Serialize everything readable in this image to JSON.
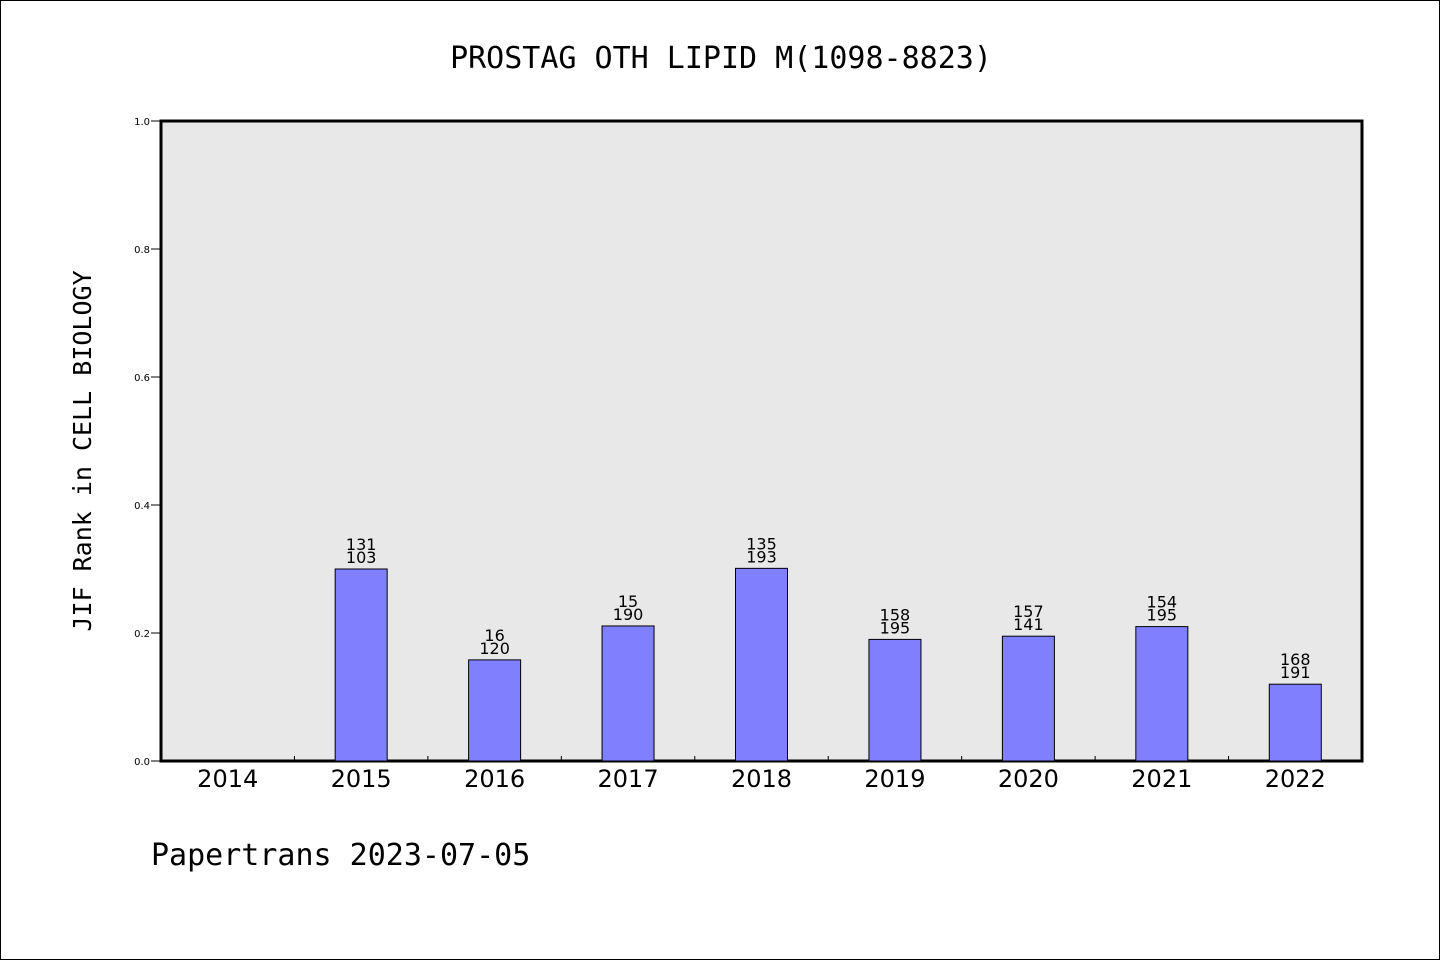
{
  "chart_data": {
    "type": "bar",
    "title": "PROSTAG OTH LIPID M(1098-8823)",
    "ylabel": "JIF Rank in CELL BIOLOGY",
    "xlabel": "",
    "footer": "Papertrans 2023-07-05",
    "ylim": [
      0,
      1.0
    ],
    "yticks": [
      "0.0",
      "0.2",
      "0.4",
      "0.6",
      "0.8",
      "1.0"
    ],
    "categories": [
      "2014",
      "2015",
      "2016",
      "2017",
      "2018",
      "2019",
      "2020",
      "2021",
      "2022"
    ],
    "values": [
      null,
      0.3,
      0.158,
      0.211,
      0.301,
      0.19,
      0.195,
      0.21,
      0.12
    ],
    "labels_top": [
      "",
      "131",
      "16",
      "15",
      "135",
      "158",
      "157",
      "154",
      "168"
    ],
    "labels_bottom": [
      "",
      "103",
      "120",
      "190",
      "193",
      "195",
      "141",
      "195",
      "191"
    ],
    "grid": false,
    "colors": {
      "bar_fill": "#8080ff",
      "bar_stroke": "#000000",
      "plot_background": "#e8e8e8"
    }
  }
}
